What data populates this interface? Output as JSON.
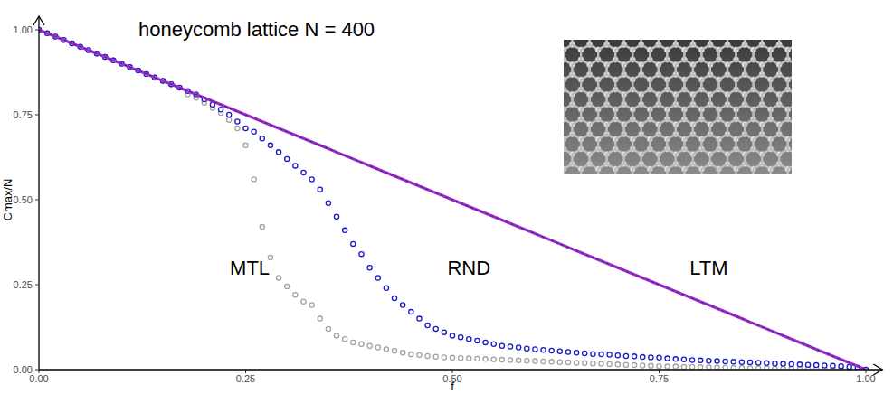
{
  "chart_data": {
    "type": "line",
    "title": "honeycomb lattice N = 400",
    "x_label": "f",
    "y_label": "Cmax/N",
    "xlim": [
      0,
      1.02
    ],
    "ylim": [
      0,
      1.04
    ],
    "xticks": [
      {
        "value": 0,
        "label": "0.00"
      },
      {
        "value": 0.25,
        "label": "0.25"
      },
      {
        "value": 0.5,
        "label": "0.50"
      },
      {
        "value": 0.75,
        "label": "0.75"
      },
      {
        "value": 1,
        "label": "1.00"
      }
    ],
    "yticks": [
      {
        "value": 0,
        "label": "0.00"
      },
      {
        "value": 0.25,
        "label": "0.25"
      },
      {
        "value": 0.5,
        "label": "0.50"
      },
      {
        "value": 0.75,
        "label": "0.75"
      },
      {
        "value": 1,
        "label": "1.00"
      }
    ],
    "grid": false,
    "x": [
      0,
      0.01,
      0.02,
      0.03,
      0.04,
      0.05,
      0.06,
      0.07,
      0.08,
      0.09,
      0.1,
      0.11,
      0.12,
      0.13,
      0.14,
      0.15,
      0.16,
      0.17,
      0.18,
      0.19,
      0.2,
      0.21,
      0.22,
      0.23,
      0.24,
      0.25,
      0.26,
      0.27,
      0.28,
      0.29,
      0.3,
      0.31,
      0.32,
      0.33,
      0.34,
      0.35,
      0.36,
      0.37,
      0.38,
      0.39,
      0.4,
      0.41,
      0.42,
      0.43,
      0.44,
      0.45,
      0.46,
      0.47,
      0.48,
      0.49,
      0.5,
      0.51,
      0.52,
      0.53,
      0.54,
      0.55,
      0.56,
      0.57,
      0.58,
      0.59,
      0.6,
      0.61,
      0.62,
      0.63,
      0.64,
      0.65,
      0.66,
      0.67,
      0.68,
      0.69,
      0.7,
      0.71,
      0.72,
      0.73,
      0.74,
      0.75,
      0.76,
      0.77,
      0.78,
      0.79,
      0.8,
      0.81,
      0.82,
      0.83,
      0.84,
      0.85,
      0.86,
      0.87,
      0.88,
      0.89,
      0.9,
      0.91,
      0.92,
      0.93,
      0.94,
      0.95,
      0.96,
      0.97,
      0.98,
      0.99,
      1
    ],
    "series": [
      {
        "name": "MTL",
        "color": "#a3a3a3",
        "type": "scatter",
        "marker": "circle_open",
        "values": [
          1,
          0.99,
          0.98,
          0.97,
          0.96,
          0.95,
          0.94,
          0.93,
          0.92,
          0.91,
          0.9,
          0.89,
          0.88,
          0.87,
          0.86,
          0.85,
          0.84,
          0.83,
          0.81,
          0.8,
          0.785,
          0.77,
          0.755,
          0.735,
          0.71,
          0.66,
          0.56,
          0.42,
          0.33,
          0.27,
          0.245,
          0.22,
          0.2,
          0.19,
          0.15,
          0.12,
          0.1,
          0.09,
          0.08,
          0.075,
          0.07,
          0.065,
          0.06,
          0.055,
          0.05,
          0.045,
          0.043,
          0.04,
          0.038,
          0.036,
          0.035,
          0.034,
          0.033,
          0.032,
          0.031,
          0.03,
          0.029,
          0.028,
          0.027,
          0.026,
          0.025,
          0.024,
          0.023,
          0.022,
          0.021,
          0.02,
          0.019,
          0.018,
          0.017,
          0.016,
          0.015,
          0.014,
          0.013,
          0.012,
          0.011,
          0.01,
          0.009,
          0.009,
          0.008,
          0.008,
          0.007,
          0.007,
          0.006,
          0.006,
          0.005,
          0.005,
          0.004,
          0.004,
          0.004,
          0.003,
          0.003,
          0.003,
          0.002,
          0.002,
          0.002,
          0.002,
          0.001,
          0.001,
          0.001,
          0.001,
          0
        ]
      },
      {
        "name": "RND",
        "color": "#1a1acc",
        "type": "scatter",
        "marker": "circle_open",
        "values": [
          1,
          0.99,
          0.98,
          0.97,
          0.96,
          0.95,
          0.94,
          0.93,
          0.92,
          0.91,
          0.9,
          0.89,
          0.88,
          0.87,
          0.86,
          0.85,
          0.84,
          0.83,
          0.82,
          0.81,
          0.795,
          0.78,
          0.765,
          0.75,
          0.73,
          0.71,
          0.7,
          0.68,
          0.66,
          0.64,
          0.62,
          0.6,
          0.58,
          0.56,
          0.53,
          0.49,
          0.45,
          0.41,
          0.37,
          0.34,
          0.3,
          0.27,
          0.24,
          0.21,
          0.19,
          0.17,
          0.15,
          0.13,
          0.12,
          0.11,
          0.1,
          0.095,
          0.09,
          0.085,
          0.08,
          0.075,
          0.07,
          0.068,
          0.065,
          0.062,
          0.06,
          0.058,
          0.056,
          0.054,
          0.052,
          0.05,
          0.048,
          0.046,
          0.045,
          0.044,
          0.042,
          0.04,
          0.039,
          0.037,
          0.036,
          0.035,
          0.033,
          0.031,
          0.03,
          0.028,
          0.027,
          0.026,
          0.025,
          0.024,
          0.023,
          0.022,
          0.021,
          0.02,
          0.019,
          0.018,
          0.017,
          0.016,
          0.015,
          0.014,
          0.013,
          0.012,
          0.011,
          0.01,
          0.008,
          0.006,
          0
        ]
      },
      {
        "name": "LTM",
        "color": "#9b30d0",
        "type": "line",
        "line_style": "solid",
        "values": [
          1,
          0.99,
          0.98,
          0.97,
          0.96,
          0.95,
          0.94,
          0.93,
          0.92,
          0.91,
          0.9,
          0.89,
          0.88,
          0.87,
          0.86,
          0.85,
          0.84,
          0.83,
          0.82,
          0.81,
          0.8,
          0.79,
          0.78,
          0.77,
          0.76,
          0.75,
          0.74,
          0.73,
          0.72,
          0.71,
          0.7,
          0.69,
          0.68,
          0.67,
          0.66,
          0.65,
          0.64,
          0.63,
          0.62,
          0.61,
          0.6,
          0.59,
          0.58,
          0.57,
          0.56,
          0.55,
          0.54,
          0.53,
          0.52,
          0.51,
          0.5,
          0.49,
          0.48,
          0.47,
          0.46,
          0.45,
          0.44,
          0.43,
          0.42,
          0.41,
          0.4,
          0.39,
          0.38,
          0.37,
          0.36,
          0.35,
          0.34,
          0.33,
          0.32,
          0.31,
          0.3,
          0.29,
          0.28,
          0.27,
          0.26,
          0.25,
          0.24,
          0.23,
          0.22,
          0.21,
          0.2,
          0.19,
          0.18,
          0.17,
          0.16,
          0.15,
          0.14,
          0.13,
          0.12,
          0.11,
          0.1,
          0.09,
          0.08,
          0.07,
          0.06,
          0.05,
          0.04,
          0.03,
          0.02,
          0.01,
          0
        ]
      }
    ]
  }
}
